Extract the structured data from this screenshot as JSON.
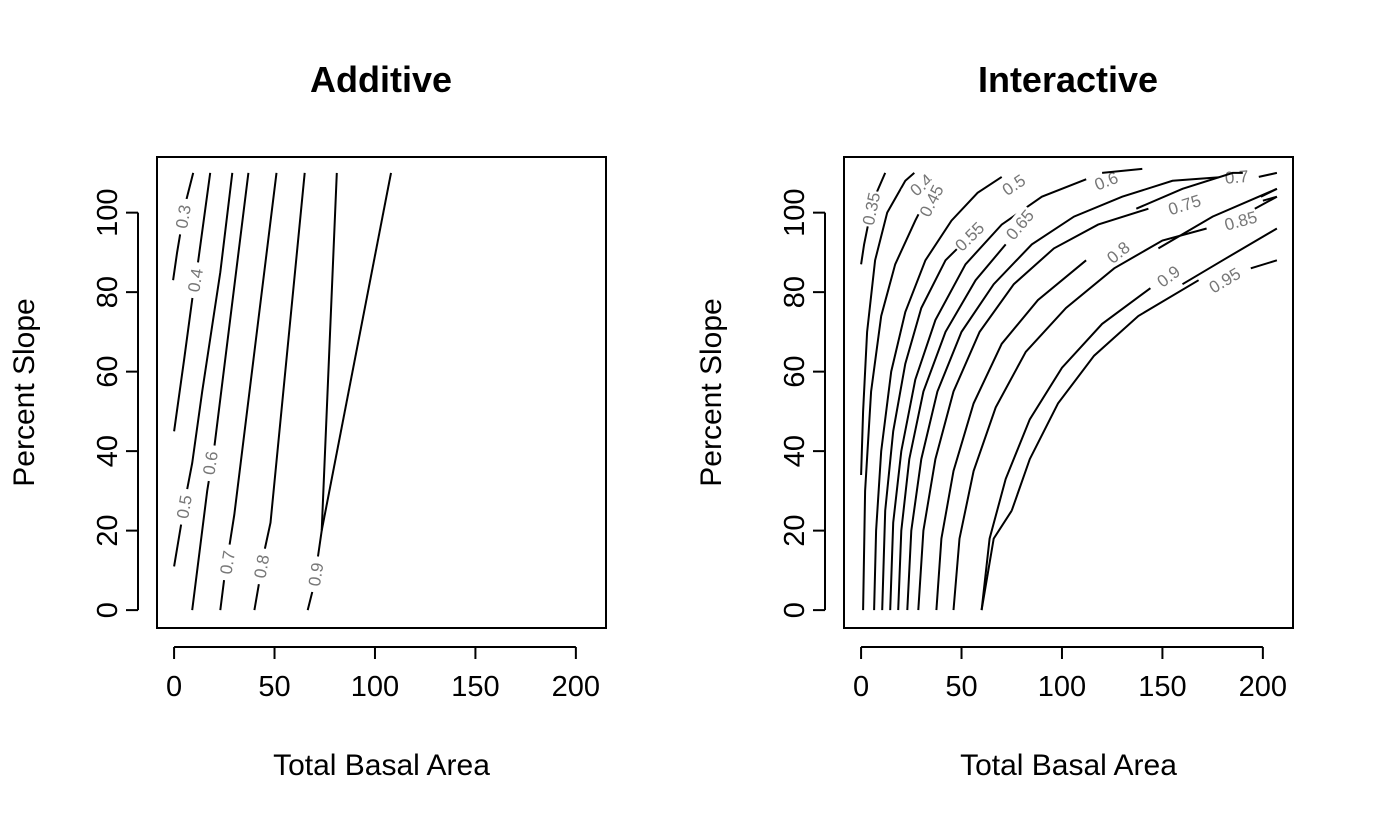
{
  "chart_data": [
    {
      "type": "contour",
      "title": "Additive",
      "xlabel": "Total Basal Area",
      "ylabel": "Percent Slope",
      "xlim": [
        -8.5,
        215
      ],
      "ylim": [
        -4.5,
        114
      ],
      "xticks": [
        0,
        50,
        100,
        150,
        200
      ],
      "yticks": [
        0,
        20,
        40,
        60,
        80,
        100
      ],
      "grid": false,
      "contours": [
        {
          "level": "0.3",
          "points": [
            [
              -0.5,
              83
            ],
            [
              1.5,
              90
            ],
            [
              3.5,
              96
            ],
            [
              5.5,
              102
            ],
            [
              9.5,
              110
            ]
          ],
          "label_at": [
            4.5,
            99
          ]
        },
        {
          "level": "0.4",
          "points": [
            [
              0.0,
              45
            ],
            [
              5.0,
              63
            ],
            [
              9.5,
              80
            ],
            [
              11.5,
              86
            ],
            [
              18.0,
              110
            ]
          ],
          "label_at": [
            10.5,
            83
          ]
        },
        {
          "level": "0.5",
          "points": [
            [
              0.0,
              11
            ],
            [
              2.0,
              17
            ],
            [
              4.0,
              23
            ],
            [
              6.0,
              29
            ],
            [
              9.0,
              37
            ],
            [
              14.0,
              55
            ],
            [
              23.0,
              85
            ],
            [
              29.0,
              110
            ]
          ],
          "label_at": [
            5.0,
            26
          ]
        },
        {
          "level": "0.6",
          "points": [
            [
              9.0,
              0
            ],
            [
              16.5,
              30
            ],
            [
              20.0,
              41
            ],
            [
              37.0,
              110
            ]
          ],
          "label_at": [
            18.0,
            37
          ]
        },
        {
          "level": "0.7",
          "points": [
            [
              23.0,
              0
            ],
            [
              25.0,
              8
            ],
            [
              27.5,
              16
            ],
            [
              30.0,
              24
            ],
            [
              51.0,
              110
            ]
          ],
          "label_at": [
            26.5,
            12
          ]
        },
        {
          "level": "0.8",
          "points": [
            [
              40.0,
              0
            ],
            [
              42.0,
              6
            ],
            [
              45.0,
              15
            ],
            [
              48.0,
              22
            ],
            [
              65.0,
              110
            ]
          ],
          "label_at": [
            43.5,
            11
          ]
        },
        {
          "level": "0.9",
          "points": [
            [
              66.5,
              0
            ],
            [
              69.0,
              5
            ],
            [
              71.5,
              13
            ],
            [
              73.5,
              20
            ],
            [
              81.0,
              110
            ]
          ],
          "label_at": [
            70.5,
            9
          ]
        },
        {
          "level": "",
          "points": [
            [
              108.0,
              0
            ],
            [
              108.0,
              0
            ]
          ]
        },
        {
          "level": "",
          "points": [
            [
              73.5,
              20
            ],
            [
              108.0,
              110
            ]
          ]
        }
      ]
    },
    {
      "type": "contour",
      "title": "Interactive",
      "xlabel": "Total Basal Area",
      "ylabel": "Percent Slope",
      "xlim": [
        -8.5,
        215
      ],
      "ylim": [
        -4.5,
        114
      ],
      "xticks": [
        0,
        50,
        100,
        150,
        200
      ],
      "yticks": [
        0,
        20,
        40,
        60,
        80,
        100
      ],
      "grid": false,
      "contours": [
        {
          "level": "0.35",
          "points": [
            [
              0.0,
              87
            ],
            [
              1.5,
              92
            ],
            [
              3.5,
              97
            ],
            [
              6.0,
              103
            ],
            [
              12.0,
              110
            ]
          ],
          "label_at": [
            5.0,
            101
          ]
        },
        {
          "level": "0.4",
          "points": [
            [
              0.0,
              34
            ],
            [
              1.0,
              50
            ],
            [
              3.0,
              70
            ],
            [
              7.0,
              88
            ],
            [
              13.0,
              100
            ],
            [
              22.0,
              108
            ],
            [
              26.5,
              110
            ]
          ],
          "label_at": [
            30.0,
            107
          ]
        },
        {
          "level": "0.45",
          "points": [
            [
              1.0,
              0
            ],
            [
              2.0,
              30
            ],
            [
              5.0,
              55
            ],
            [
              10.0,
              74
            ],
            [
              17.0,
              87
            ],
            [
              27.0,
              98
            ],
            [
              31.0,
              102
            ]
          ],
          "label_at": [
            35.0,
            103
          ]
        },
        {
          "level": "0.5",
          "points": [
            [
              6.5,
              0
            ],
            [
              7.5,
              20
            ],
            [
              10.0,
              40
            ],
            [
              15.0,
              60
            ],
            [
              22.0,
              75
            ],
            [
              32.0,
              88
            ],
            [
              45.0,
              98
            ],
            [
              58.0,
              105
            ],
            [
              70.0,
              109
            ]
          ],
          "label_at": [
            76.0,
            107
          ]
        },
        {
          "level": "0.55",
          "points": [
            [
              10.5,
              0
            ],
            [
              12.0,
              25
            ],
            [
              16.0,
              45
            ],
            [
              22.0,
              62
            ],
            [
              30.0,
              76
            ],
            [
              42.0,
              88
            ],
            [
              48.0,
              91
            ]
          ],
          "label_at": [
            54.0,
            94
          ]
        },
        {
          "level": "0.6",
          "points": [
            [
              14.5,
              0
            ],
            [
              16.0,
              22
            ],
            [
              20.0,
              40
            ],
            [
              27.0,
              58
            ],
            [
              37.0,
              73
            ],
            [
              52.0,
              87
            ],
            [
              70.0,
              97
            ],
            [
              90.0,
              104
            ],
            [
              115.0,
              109
            ]
          ],
          "label_at": [
            122.0,
            108
          ]
        },
        {
          "level": "0.65",
          "points": [
            [
              18.5,
              0
            ],
            [
              20.0,
              20
            ],
            [
              24.0,
              38
            ],
            [
              31.0,
              55
            ],
            [
              42.0,
              70
            ],
            [
              57.0,
              83
            ],
            [
              72.0,
              92
            ]
          ],
          "label_at": [
            79.0,
            97
          ]
        },
        {
          "level": "0.7",
          "points": [
            [
              23.0,
              0
            ],
            [
              25.0,
              20
            ],
            [
              30.0,
              38
            ],
            [
              38.0,
              55
            ],
            [
              50.0,
              70
            ],
            [
              66.0,
              82
            ],
            [
              85.0,
              92
            ],
            [
              106.0,
              99
            ],
            [
              130.0,
              104
            ],
            [
              155.0,
              108
            ],
            [
              181.0,
              109
            ]
          ],
          "label_at": [
            187.0,
            109
          ]
        },
        {
          "level": "0.75",
          "points": [
            [
              28.5,
              0
            ],
            [
              31.0,
              20
            ],
            [
              37.0,
              38
            ],
            [
              46.0,
              55
            ],
            [
              59.0,
              70
            ],
            [
              76.0,
              82
            ],
            [
              96.0,
              91
            ],
            [
              118.0,
              97
            ],
            [
              143.0,
              101
            ]
          ],
          "label_at": [
            161.0,
            102
          ]
        },
        {
          "level": "0.8",
          "points": [
            [
              37.5,
              0
            ],
            [
              40.0,
              18
            ],
            [
              46.0,
              35
            ],
            [
              56.0,
              52
            ],
            [
              70.0,
              67
            ],
            [
              88.0,
              78
            ],
            [
              112.0,
              88
            ]
          ],
          "label_at": [
            128.0,
            90
          ]
        },
        {
          "level": "0.85",
          "points": [
            [
              46.0,
              0
            ],
            [
              49.0,
              18
            ],
            [
              56.0,
              35
            ],
            [
              67.0,
              51
            ],
            [
              82.0,
              65
            ],
            [
              102.0,
              76
            ],
            [
              126.0,
              86
            ],
            [
              150.0,
              93
            ],
            [
              172.0,
              96
            ]
          ],
          "label_at": [
            189.0,
            98
          ]
        },
        {
          "level": "0.9",
          "points": [
            [
              60.0,
              0
            ],
            [
              64.0,
              18
            ],
            [
              72.0,
              33
            ],
            [
              84.0,
              48
            ],
            [
              100.0,
              61
            ],
            [
              120.0,
              72
            ],
            [
              144.0,
              81
            ]
          ],
          "label_at": [
            153.0,
            84
          ]
        },
        {
          "level": "0.95",
          "points": [
            [
              75.0,
              25
            ],
            [
              84.0,
              38
            ],
            [
              98.0,
              52
            ],
            [
              116.0,
              64
            ],
            [
              138.0,
              74
            ],
            [
              168.0,
              83
            ]
          ],
          "label_at": [
            181.0,
            83
          ]
        },
        {
          "level": "",
          "points": [
            [
              196.0,
              101
            ],
            [
              207.0,
              104
            ]
          ]
        },
        {
          "level": "",
          "points": [
            [
              198.0,
              109
            ],
            [
              207.0,
              110
            ]
          ]
        },
        {
          "level": "",
          "points": [
            [
              199.0,
              104
            ],
            [
              207.0,
              106
            ]
          ]
        },
        {
          "level": "",
          "points": [
            [
              160.0,
              82
            ],
            [
              180.0,
              88
            ],
            [
              207.0,
              96
            ]
          ]
        },
        {
          "level": "",
          "points": [
            [
              194.0,
              86
            ],
            [
              207.0,
              88
            ]
          ]
        },
        {
          "level": "",
          "points": [
            [
              120.0,
              110
            ],
            [
              140.0,
              111
            ]
          ]
        },
        {
          "level": "",
          "points": [
            [
              137.0,
              101
            ],
            [
              160.0,
              106
            ],
            [
              185.0,
              110
            ],
            [
              190.0,
              110
            ]
          ]
        },
        {
          "level": "",
          "points": [
            [
              148.0,
              91
            ],
            [
              175.0,
              99
            ],
            [
              207.0,
              106
            ]
          ]
        },
        {
          "level": "",
          "points": [
            [
              200.0,
              103
            ],
            [
              207.0,
              104
            ]
          ]
        },
        {
          "level": "",
          "points": [
            [
              60.0,
              0
            ],
            [
              66.0,
              18
            ],
            [
              75.0,
              25
            ]
          ]
        }
      ]
    }
  ]
}
